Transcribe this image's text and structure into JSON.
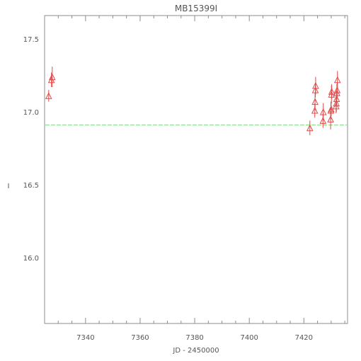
{
  "chart_data": {
    "type": "scatter",
    "title": "MB15399I",
    "xlabel": "JD - 2450000",
    "ylabel": "I",
    "xlim": [
      7325,
      7436
    ],
    "ylim": [
      17.66,
      15.55
    ],
    "y_inverted": true,
    "xticks": [
      7340,
      7360,
      7380,
      7400,
      7420
    ],
    "yticks": [
      16.0,
      16.5,
      17.0,
      17.5
    ],
    "ytick_labels": [
      "16.0",
      "16.5",
      "17.0",
      "17.5"
    ],
    "grid": false,
    "reference_line": {
      "y": 16.91,
      "color": "#7fd87f",
      "style": "dashed"
    },
    "series": [
      {
        "marker": "triangle-open",
        "color": "#e34848",
        "points": [
          {
            "x": 7326.5,
            "y": 17.11,
            "err": 0.04
          },
          {
            "x": 7327.5,
            "y": 17.22,
            "err": 0.05
          },
          {
            "x": 7327.8,
            "y": 17.24,
            "err": 0.07
          },
          {
            "x": 7422.2,
            "y": 16.89,
            "err": 0.05
          },
          {
            "x": 7424.0,
            "y": 17.01,
            "err": 0.05
          },
          {
            "x": 7424.1,
            "y": 17.07,
            "err": 0.06
          },
          {
            "x": 7424.2,
            "y": 17.15,
            "err": 0.05
          },
          {
            "x": 7424.3,
            "y": 17.18,
            "err": 0.06
          },
          {
            "x": 7427.0,
            "y": 16.94,
            "err": 0.05
          },
          {
            "x": 7427.1,
            "y": 17.0,
            "err": 0.06
          },
          {
            "x": 7429.8,
            "y": 16.95,
            "err": 0.07
          },
          {
            "x": 7429.9,
            "y": 17.01,
            "err": 0.06
          },
          {
            "x": 7430.0,
            "y": 17.02,
            "err": 0.05
          },
          {
            "x": 7430.1,
            "y": 17.12,
            "err": 0.06
          },
          {
            "x": 7430.2,
            "y": 17.14,
            "err": 0.05
          },
          {
            "x": 7431.8,
            "y": 17.04,
            "err": 0.05
          },
          {
            "x": 7431.9,
            "y": 17.06,
            "err": 0.06
          },
          {
            "x": 7432.0,
            "y": 17.09,
            "err": 0.05
          },
          {
            "x": 7432.1,
            "y": 17.13,
            "err": 0.06
          },
          {
            "x": 7432.2,
            "y": 17.15,
            "err": 0.05
          },
          {
            "x": 7432.3,
            "y": 17.22,
            "err": 0.06
          }
        ]
      }
    ]
  }
}
